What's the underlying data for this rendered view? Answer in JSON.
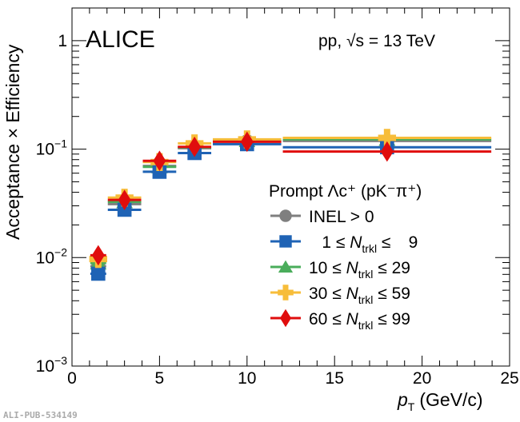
{
  "chart_data": {
    "type": "scatter",
    "title": "ALICE",
    "subtitle": "pp, √s = 13 TeV",
    "xlabel": "p_T (GeV/c)",
    "ylabel": "Acceptance × Efficiency",
    "xlim": [
      0,
      25
    ],
    "ylim": [
      0.001,
      2.0
    ],
    "yscale": "log",
    "xticks": [
      "0",
      "5",
      "10",
      "15",
      "20",
      "25"
    ],
    "xtick_values": [
      0,
      5,
      10,
      15,
      20,
      25
    ],
    "yticks": [
      {
        "base": "10",
        "exp": "−3",
        "value": 0.001
      },
      {
        "base": "10",
        "exp": "−2",
        "value": 0.01
      },
      {
        "base": "10",
        "exp": "−1",
        "value": 0.1
      },
      {
        "base": "1",
        "exp": "",
        "value": 1
      }
    ],
    "bins": [
      [
        1,
        2
      ],
      [
        2,
        4
      ],
      [
        4,
        6
      ],
      [
        6,
        8
      ],
      [
        8,
        12
      ],
      [
        12,
        24
      ]
    ],
    "legend_title": "Prompt Λc⁺ (pK⁻π⁺)",
    "legend_placement": "center-right",
    "series": [
      {
        "name": "INEL > 0",
        "color": "#7f7f7f",
        "marker": "circle",
        "values": [
          0.0083,
          0.0311,
          0.07,
          0.102,
          0.118,
          0.119
        ]
      },
      {
        "name": "1 ≤ N_trkl ≤ 9",
        "color": "#1f63b5",
        "marker": "square",
        "values": [
          0.0071,
          0.0276,
          0.0618,
          0.092,
          0.111,
          0.104
        ]
      },
      {
        "name": "10 ≤ N_trkl ≤ 29",
        "color": "#4aad5b",
        "marker": "triangle",
        "values": [
          0.0089,
          0.0327,
          0.0686,
          0.104,
          0.12,
          0.123
        ]
      },
      {
        "name": "30 ≤ N_trkl ≤ 59",
        "color": "#f7bd3a",
        "marker": "cross",
        "values": [
          0.0097,
          0.0357,
          0.076,
          0.113,
          0.123,
          0.127
        ]
      },
      {
        "name": "60 ≤ N_trkl ≤ 99",
        "color": "#e00d0d",
        "marker": "diamond",
        "values": [
          0.0105,
          0.034,
          0.078,
          0.105,
          0.117,
          0.095
        ]
      }
    ],
    "watermark": "ALI-PUB-534149"
  }
}
